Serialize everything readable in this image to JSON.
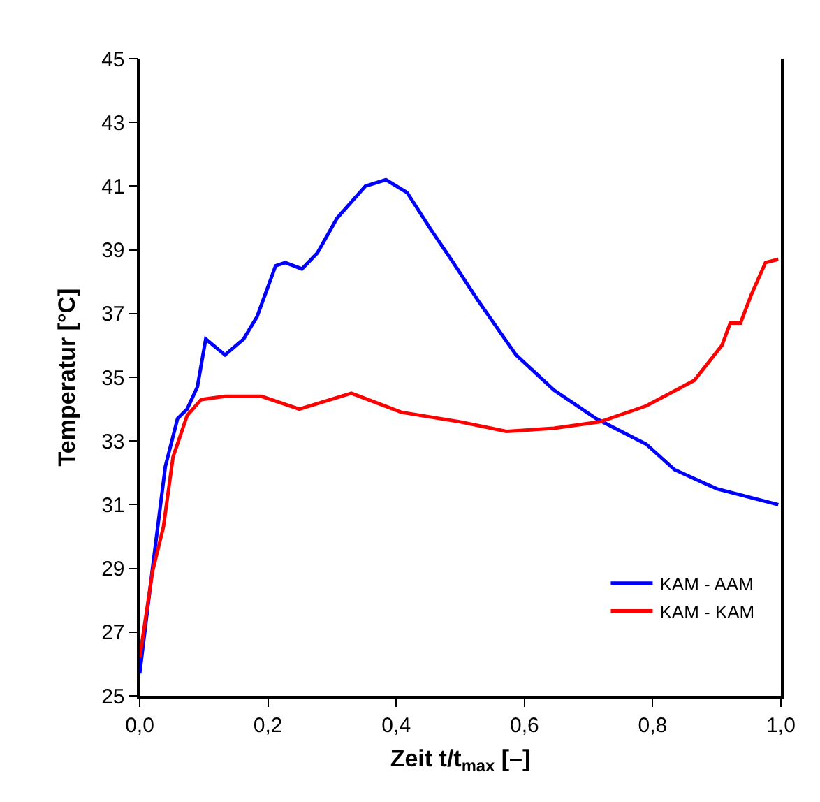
{
  "chart_data": {
    "type": "line",
    "xlabel": "Zeit t/t$_{max}$ [–]",
    "ylabel": "Temperatur [°C]",
    "xlim": [
      0,
      1
    ],
    "ylim": [
      25,
      45
    ],
    "xticks": [
      {
        "value": 0,
        "label": "0,0"
      },
      {
        "value": 0.2,
        "label": "0,2"
      },
      {
        "value": 0.4,
        "label": "0,4"
      },
      {
        "value": 0.6,
        "label": "0,6"
      },
      {
        "value": 0.8,
        "label": "0,8"
      },
      {
        "value": 1,
        "label": "1,0"
      }
    ],
    "yticks": [
      25,
      27,
      29,
      31,
      33,
      35,
      37,
      39,
      41,
      43,
      45
    ],
    "grid": false,
    "legend": "bottom right",
    "marker": "none",
    "line_style": "solid",
    "series": [
      {
        "name": "KAM - AAM",
        "color": "#0000ff",
        "x": [
          0,
          0.02,
          0.04,
          0.059,
          0.074,
          0.09,
          0.103,
          0.133,
          0.162,
          0.183,
          0.212,
          0.227,
          0.253,
          0.277,
          0.308,
          0.352,
          0.384,
          0.417,
          0.452,
          0.489,
          0.528,
          0.587,
          0.646,
          0.712,
          0.79,
          0.834,
          0.9,
          0.996
        ],
        "values": [
          25.7,
          29.0,
          32.2,
          33.7,
          34.0,
          34.7,
          36.2,
          35.7,
          36.2,
          36.9,
          38.5,
          38.6,
          38.4,
          38.9,
          40.0,
          41.0,
          41.2,
          40.8,
          39.7,
          38.6,
          37.4,
          35.7,
          34.6,
          33.7,
          32.9,
          32.1,
          31.5,
          31.0
        ]
      },
      {
        "name": "KAM - KAM",
        "color": "#ff0000",
        "x": [
          0,
          0.02,
          0.037,
          0.052,
          0.074,
          0.096,
          0.133,
          0.19,
          0.249,
          0.33,
          0.408,
          0.5,
          0.572,
          0.646,
          0.718,
          0.79,
          0.865,
          0.908,
          0.921,
          0.937,
          0.954,
          0.976,
          0.996
        ],
        "values": [
          26.2,
          28.9,
          30.3,
          32.5,
          33.8,
          34.3,
          34.4,
          34.4,
          34.0,
          34.5,
          33.9,
          33.6,
          33.3,
          33.4,
          33.6,
          34.1,
          34.9,
          36.0,
          36.7,
          36.7,
          37.6,
          38.6,
          38.7
        ]
      }
    ]
  }
}
